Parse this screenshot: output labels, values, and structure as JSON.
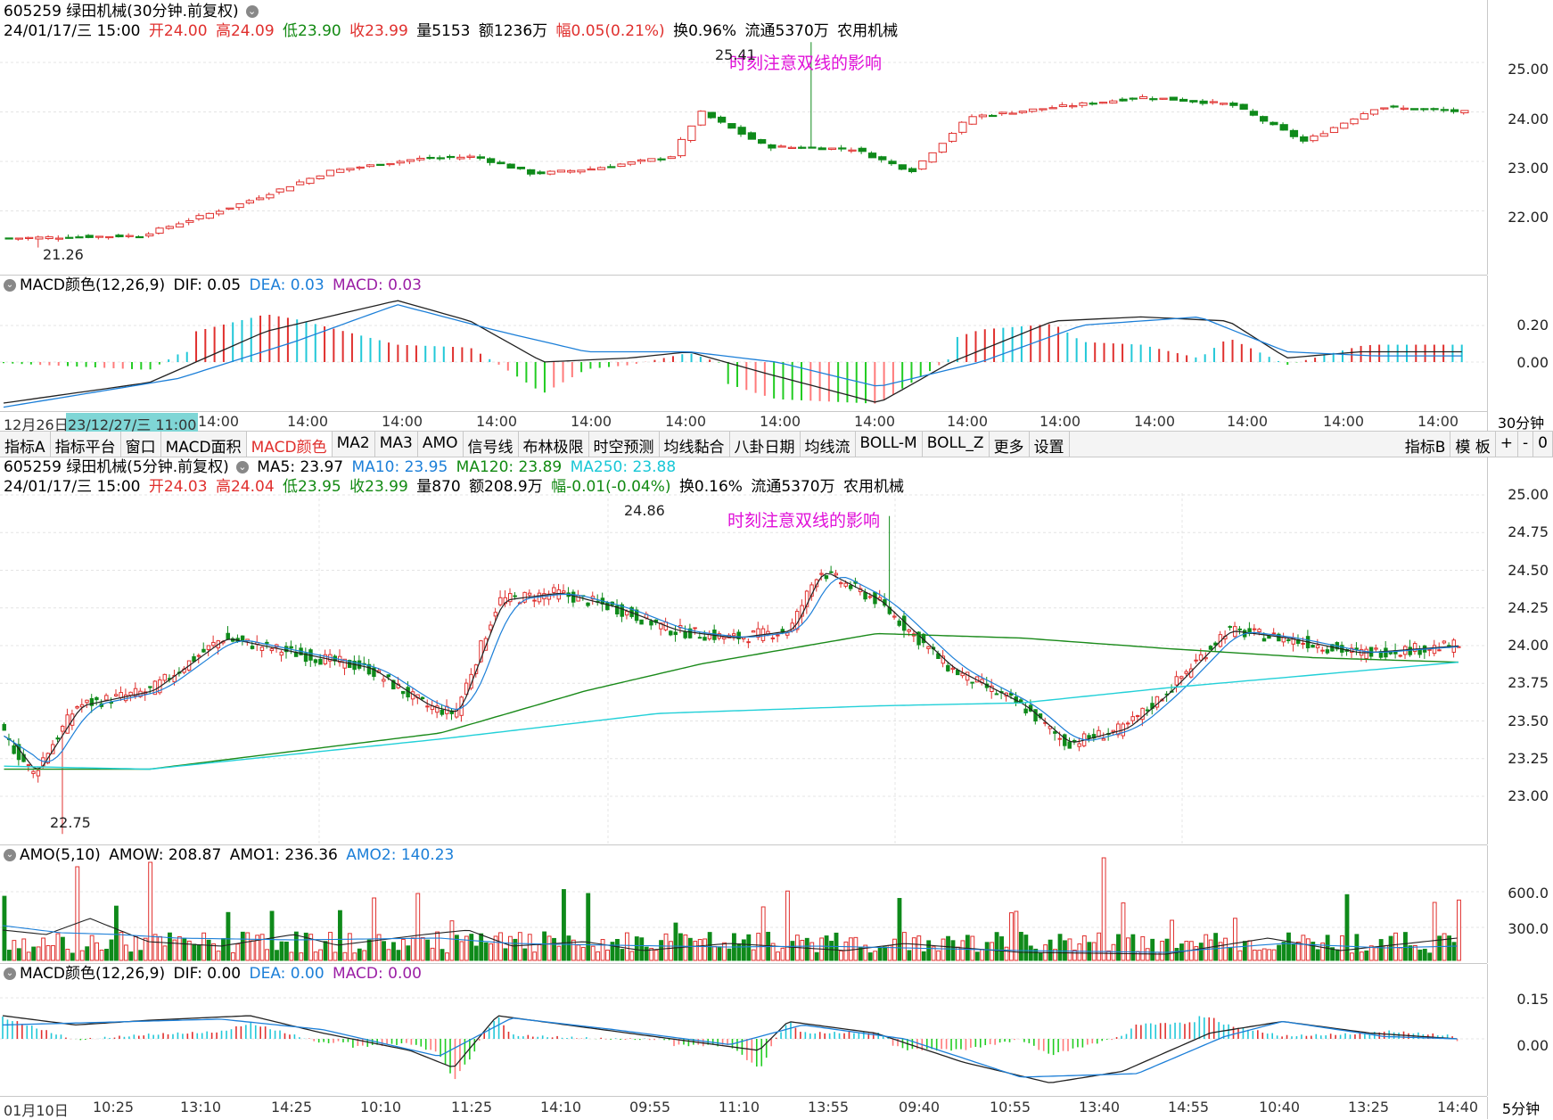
{
  "panel1": {
    "title": "605259 绿田机械(30分钟.前复权)",
    "toggle_icon": "chevron-down-icon",
    "info": {
      "datetime": "24/01/17/三 15:00",
      "open": "开24.00",
      "high": "高24.09",
      "low": "低23.90",
      "close": "收23.99",
      "volume": "量5153",
      "amount": "额1236万",
      "change": "幅0.05(0.21%)",
      "turnover": "换0.96%",
      "float": "流通5370万",
      "sector": "农用机械"
    },
    "annotation": "时刻注意双线的影响",
    "high_mark": "25.41",
    "low_mark": "21.26",
    "axis_ticks": [
      "25.00",
      "24.00",
      "23.00",
      "22.00"
    ]
  },
  "macd1": {
    "label": "MACD颜色(12,26,9)",
    "dif": "DIF: 0.05",
    "dea": "DEA: 0.03",
    "macd": "MACD: 0.03",
    "axis_ticks": [
      "0.20",
      "0.00"
    ]
  },
  "timebar1": {
    "labels": [
      "12月26日",
      "23/12/27/三 11:00",
      "14:00",
      "14:00",
      "14:00",
      "14:00",
      "14:00",
      "14:00",
      "14:00",
      "14:00",
      "14:00",
      "14:00",
      "14:00",
      "14:00",
      "14:00",
      "14:00"
    ],
    "period": "30分钟"
  },
  "toolbar": {
    "items": [
      "指标A",
      "指标平台",
      "窗口",
      "MACD面积",
      "MACD颜色",
      "MA2",
      "MA3",
      "AMO",
      "信号线",
      "布林极限",
      "时空预测",
      "均线黏合",
      "八卦日期",
      "均线流",
      "BOLL-M",
      "BOLL_Z",
      "更多",
      "设置"
    ],
    "active": "MACD颜色",
    "right_items": [
      "指标B",
      "模 板",
      "+",
      "-",
      "0"
    ]
  },
  "panel2": {
    "title": "605259 绿田机械(5分钟.前复权)",
    "ma5": "MA5: 23.97",
    "ma10": "MA10: 23.95",
    "ma120": "MA120: 23.89",
    "ma250": "MA250: 23.88",
    "info": {
      "datetime": "24/01/17/三 15:00",
      "open": "开24.03",
      "high": "高24.04",
      "low": "低23.95",
      "close": "收23.99",
      "volume": "量870",
      "amount": "额208.9万",
      "change": "幅-0.01(-0.04%)",
      "turnover": "换0.16%",
      "float": "流通5370万",
      "sector": "农用机械"
    },
    "annotation": "时刻注意双线的影响",
    "high_mark": "24.86",
    "low_mark": "22.75",
    "axis_ticks": [
      "25.00",
      "24.75",
      "24.50",
      "24.25",
      "24.00",
      "23.75",
      "23.50",
      "23.25",
      "23.00"
    ]
  },
  "amo": {
    "label": "AMO(5,10)",
    "amow": "AMOW: 208.87",
    "amo1": "AMO1: 236.36",
    "amo2": "AMO2: 140.23",
    "axis_ticks": [
      "600.0",
      "300.0"
    ]
  },
  "macd2": {
    "label": "MACD颜色(12,26,9)",
    "dif": "DIF: 0.00",
    "dea": "DEA: 0.00",
    "macd": "MACD: 0.00",
    "axis_ticks": [
      "0.15",
      "0.00"
    ]
  },
  "timebar2": {
    "labels": [
      "01月10日",
      "10:25",
      "13:10",
      "14:25",
      "10:10",
      "11:25",
      "14:10",
      "09:55",
      "11:10",
      "13:55",
      "09:40",
      "10:55",
      "13:40",
      "14:55",
      "10:40",
      "13:25",
      "14:40"
    ],
    "period": "5分钟"
  },
  "colors": {
    "up": "#e0302e",
    "down": "#0f8a1a",
    "dif": "#222222",
    "dea": "#1c7fd8",
    "ma120": "#1a8a1a",
    "ma250": "#22d0d8",
    "macd_up": "#e0302e",
    "macd_down": "#22cc22",
    "macd_up_b": "#22c8d8",
    "macd_down_b": "#ff7a7a"
  }
}
